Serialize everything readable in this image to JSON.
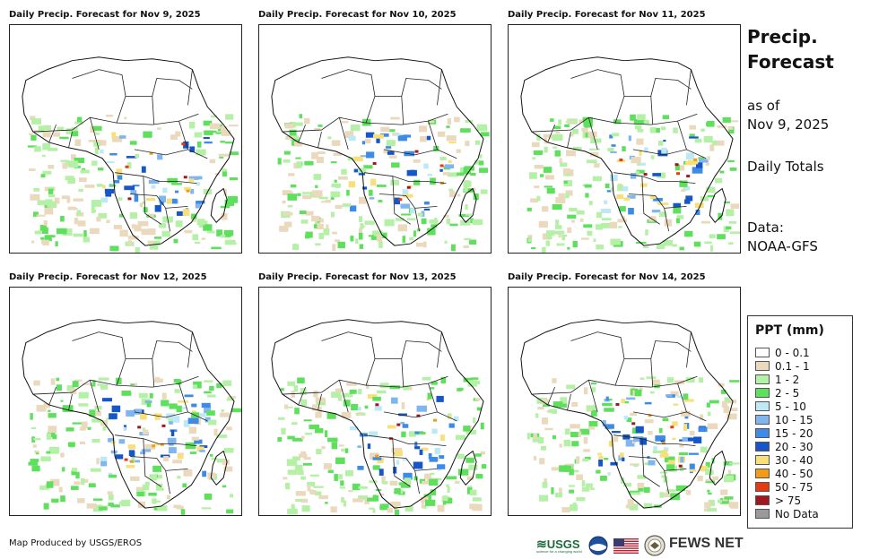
{
  "panels": [
    {
      "title": "Daily Precip. Forecast for Nov 9, 2025"
    },
    {
      "title": "Daily Precip. Forecast for Nov 10, 2025"
    },
    {
      "title": "Daily Precip. Forecast for Nov 11, 2025"
    },
    {
      "title": "Daily Precip. Forecast for Nov 12, 2025"
    },
    {
      "title": "Daily Precip. Forecast for Nov 13, 2025"
    },
    {
      "title": "Daily Precip. Forecast for Nov 14, 2025"
    }
  ],
  "sidebar": {
    "title_line1": "Precip.",
    "title_line2": "Forecast",
    "as_of_line1": "as of",
    "as_of_line2": "Nov 9, 2025",
    "totals": "Daily Totals",
    "data_line1": "Data:",
    "data_line2": "NOAA-GFS"
  },
  "legend": {
    "title": "PPT (mm)",
    "items": [
      {
        "label": "0 - 0.1",
        "color": "#ffffff"
      },
      {
        "label": "0.1 - 1",
        "color": "#ead9bd"
      },
      {
        "label": "1 - 2",
        "color": "#b4f0a6"
      },
      {
        "label": "2 - 5",
        "color": "#5fe05d"
      },
      {
        "label": "5 - 10",
        "color": "#bde9f6"
      },
      {
        "label": "10 - 15",
        "color": "#7fb6f0"
      },
      {
        "label": "15 - 20",
        "color": "#3d8be6"
      },
      {
        "label": "20 - 30",
        "color": "#1656c8"
      },
      {
        "label": "30 - 40",
        "color": "#f7e07a"
      },
      {
        "label": "40 - 50",
        "color": "#f39b14"
      },
      {
        "label": "50 - 75",
        "color": "#e63a12"
      },
      {
        "label": "> 75",
        "color": "#a3161d"
      },
      {
        "label": "No Data",
        "color": "#9a9a9a"
      }
    ]
  },
  "footer": {
    "credit": "Map Produced by USGS/EROS",
    "usgs": "USGS",
    "usgs_tagline": "science for a changing world",
    "fews": "FEWS NET"
  }
}
